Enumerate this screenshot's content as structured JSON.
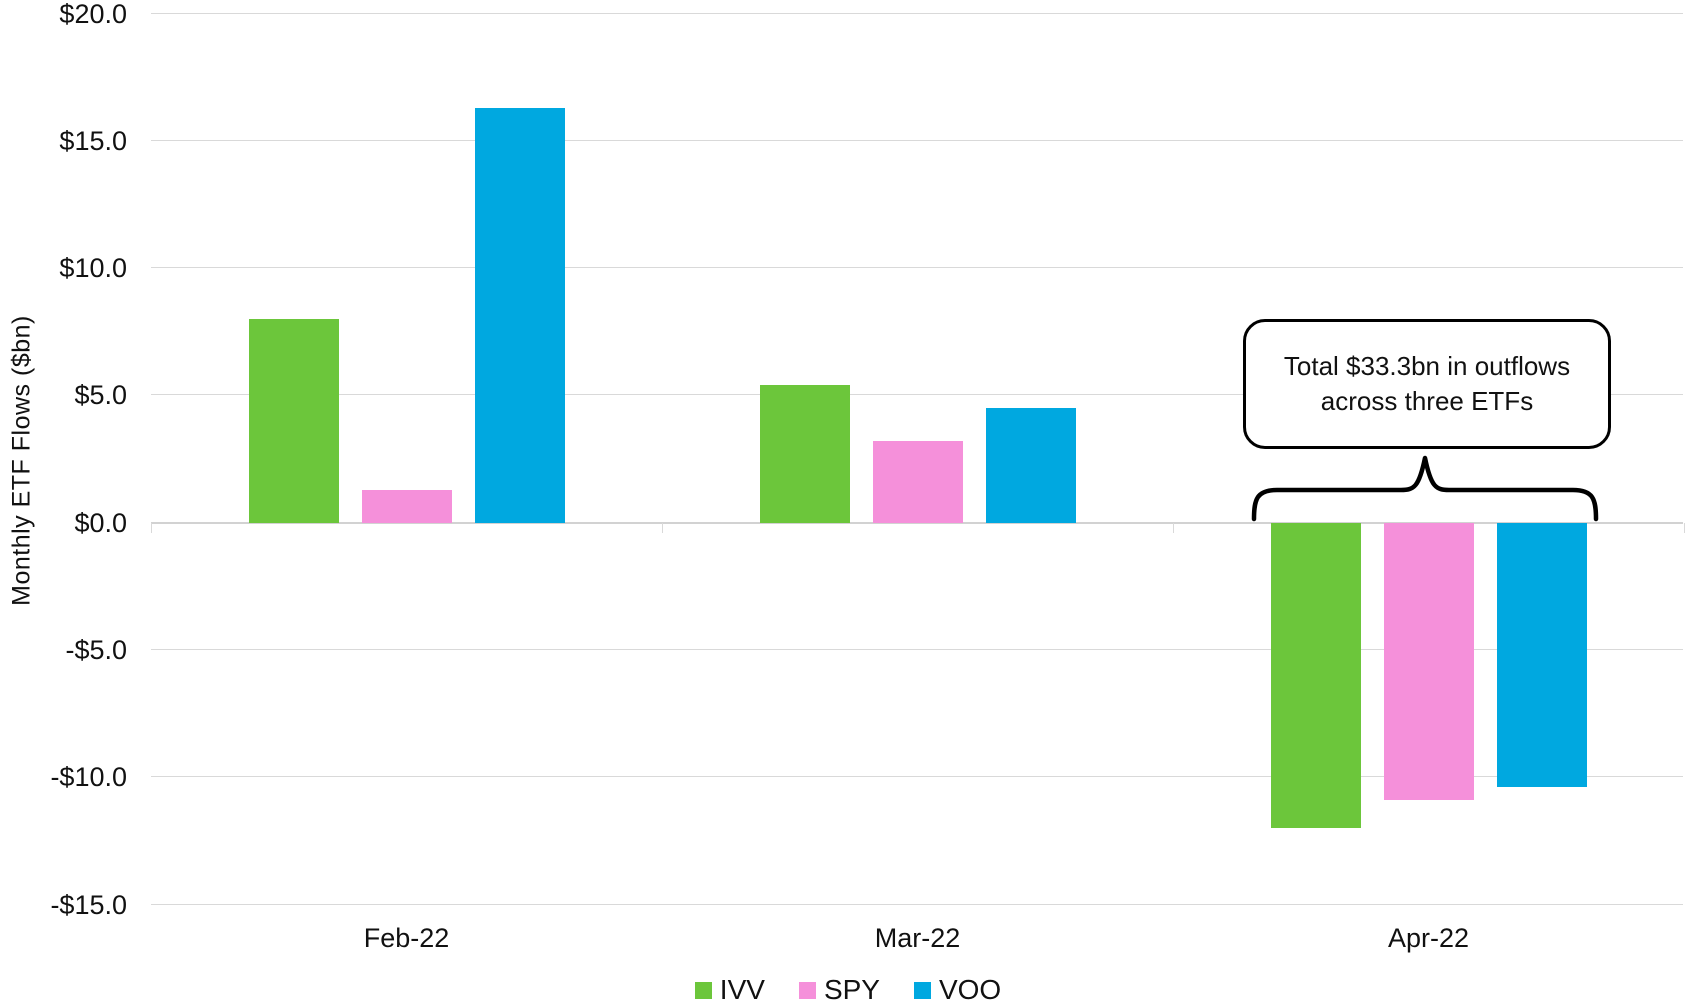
{
  "chart_data": {
    "type": "bar",
    "title": "",
    "ylabel": "Monthly ETF Flows ($bn)",
    "categories": [
      "Feb-22",
      "Mar-22",
      "Apr-22"
    ],
    "series": [
      {
        "name": "IVV",
        "color": "#6CC63B",
        "values": [
          8.0,
          5.4,
          -12.0
        ]
      },
      {
        "name": "SPY",
        "color": "#F590DA",
        "values": [
          1.3,
          3.2,
          -10.9
        ]
      },
      {
        "name": "VOO",
        "color": "#00A8E0",
        "values": [
          16.3,
          4.5,
          -10.4
        ]
      }
    ],
    "y_axis": {
      "range": [
        -15,
        20
      ],
      "ticks": [
        {
          "v": 20,
          "label": "$20.0"
        },
        {
          "v": 15,
          "label": "$15.0"
        },
        {
          "v": 10,
          "label": "$10.0"
        },
        {
          "v": 5,
          "label": "$5.0"
        },
        {
          "v": 0,
          "label": "$0.0"
        },
        {
          "v": -5,
          "label": "-$5.0"
        },
        {
          "v": -10,
          "label": "-$10.0"
        },
        {
          "v": -15,
          "label": "-$15.0"
        }
      ]
    },
    "grid": true,
    "legend_position": "bottom",
    "annotation": {
      "line1": "Total $33.3bn in outflows",
      "line2": "across three ETFs",
      "target_category": "Apr-22",
      "total_value": -33.3
    }
  }
}
